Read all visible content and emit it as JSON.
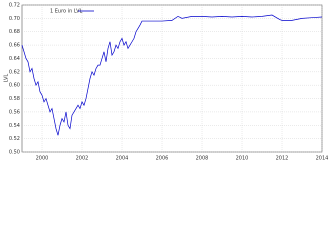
{
  "chart_data": {
    "type": "line",
    "ylabel": "LVL",
    "x": [
      1999.0,
      1999.1,
      1999.2,
      1999.3,
      1999.4,
      1999.5,
      1999.6,
      1999.7,
      1999.8,
      1999.9,
      2000.0,
      2000.1,
      2000.2,
      2000.3,
      2000.4,
      2000.5,
      2000.6,
      2000.7,
      2000.8,
      2000.9,
      2001.0,
      2001.1,
      2001.2,
      2001.3,
      2001.4,
      2001.5,
      2001.6,
      2001.7,
      2001.8,
      2001.9,
      2002.0,
      2002.1,
      2002.2,
      2002.3,
      2002.4,
      2002.5,
      2002.6,
      2002.7,
      2002.8,
      2002.9,
      2003.0,
      2003.1,
      2003.2,
      2003.3,
      2003.4,
      2003.5,
      2003.6,
      2003.7,
      2003.8,
      2003.9,
      2004.0,
      2004.1,
      2004.2,
      2004.3,
      2004.4,
      2004.5,
      2004.6,
      2004.7,
      2004.8,
      2004.9,
      2005.0,
      2005.5,
      2006.0,
      2006.5,
      2006.8,
      2007.0,
      2007.5,
      2008.0,
      2008.5,
      2009.0,
      2009.5,
      2010.0,
      2010.5,
      2011.0,
      2011.5,
      2011.9,
      2012.0,
      2012.5,
      2013.0,
      2013.5,
      2014.0
    ],
    "series": [
      {
        "name": "1 Euro in LVL",
        "color": "#0000cc",
        "values": [
          0.66,
          0.65,
          0.64,
          0.635,
          0.62,
          0.625,
          0.61,
          0.6,
          0.605,
          0.59,
          0.585,
          0.575,
          0.58,
          0.57,
          0.56,
          0.565,
          0.55,
          0.535,
          0.525,
          0.54,
          0.55,
          0.545,
          0.56,
          0.54,
          0.535,
          0.555,
          0.56,
          0.565,
          0.57,
          0.565,
          0.575,
          0.57,
          0.58,
          0.595,
          0.61,
          0.62,
          0.615,
          0.625,
          0.63,
          0.63,
          0.64,
          0.65,
          0.635,
          0.655,
          0.665,
          0.645,
          0.65,
          0.66,
          0.655,
          0.665,
          0.67,
          0.66,
          0.665,
          0.655,
          0.66,
          0.665,
          0.67,
          0.68,
          0.685,
          0.69,
          0.696,
          0.696,
          0.696,
          0.697,
          0.703,
          0.7,
          0.703,
          0.703,
          0.702,
          0.703,
          0.702,
          0.703,
          0.702,
          0.703,
          0.705,
          0.698,
          0.697,
          0.697,
          0.7,
          0.701,
          0.702
        ]
      }
    ],
    "xlim": [
      1999,
      2014
    ],
    "xticks": [
      2000,
      2002,
      2004,
      2006,
      2008,
      2010,
      2012,
      2014
    ],
    "ylim": [
      0.5,
      0.72
    ],
    "yticks": [
      {
        "value": 0.5,
        "label": "0.50"
      },
      0.52,
      0.54,
      0.56,
      0.58,
      {
        "value": 0.6,
        "label": "0.60"
      },
      0.62,
      0.64,
      0.66,
      0.68,
      {
        "value": 0.7,
        "label": "0.70"
      },
      0.72
    ],
    "grid": true,
    "legend": "upper left"
  }
}
